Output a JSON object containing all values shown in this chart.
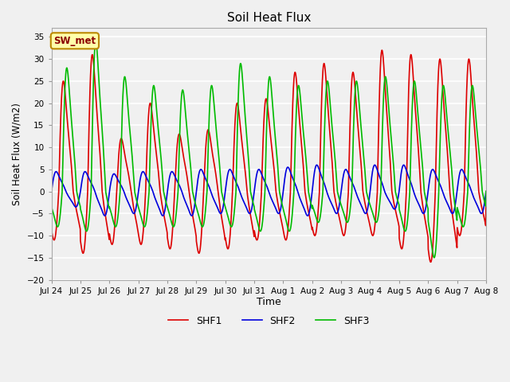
{
  "title": "Soil Heat Flux",
  "xlabel": "Time",
  "ylabel": "Soil Heat Flux (W/m2)",
  "ylim": [
    -20,
    37
  ],
  "yticks": [
    -20,
    -15,
    -10,
    -5,
    0,
    5,
    10,
    15,
    20,
    25,
    30,
    35
  ],
  "fig_bg_color": "#f0f0f0",
  "plot_bg_color": "#f0f0f0",
  "legend_entries": [
    "SHF1",
    "SHF2",
    "SHF3"
  ],
  "line_colors": [
    "#dd0000",
    "#0000dd",
    "#00bb00"
  ],
  "annotation_text": "SW_met",
  "annotation_bg": "#ffffaa",
  "annotation_border": "#bb8800",
  "n_days": 15,
  "samples_per_day": 144
}
